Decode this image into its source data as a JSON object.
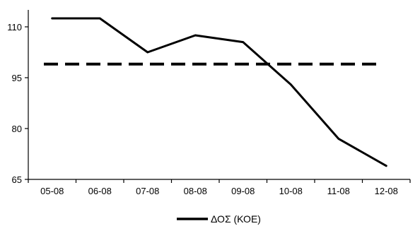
{
  "chart_data": {
    "type": "line",
    "categories": [
      "05-08",
      "06-08",
      "07-08",
      "08-08",
      "09-08",
      "10-08",
      "11-08",
      "12-08"
    ],
    "series": [
      {
        "name": "ΔΟΣ (ΚΟΕ)",
        "values": [
          112.5,
          112.5,
          102.5,
          107.5,
          105.5,
          93,
          77,
          69
        ],
        "color": "#000000",
        "style": "solid"
      }
    ],
    "reference_line": {
      "value": 99,
      "style": "dashed",
      "color": "#000000"
    },
    "y_ticks": [
      65,
      80,
      95,
      110
    ],
    "ylim": [
      65,
      115
    ],
    "legend_position": "bottom-center",
    "grid": false
  }
}
